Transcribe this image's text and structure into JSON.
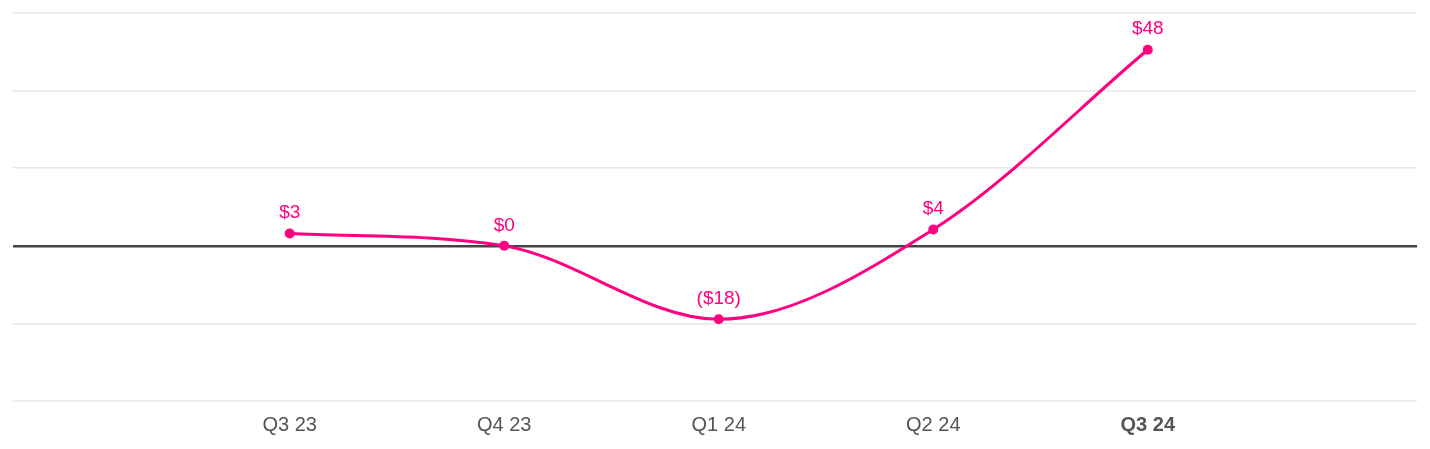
{
  "chart_data": {
    "type": "line",
    "categories": [
      "Q3 23",
      "Q4 23",
      "Q1 24",
      "Q2 24",
      "Q3 24"
    ],
    "values": [
      3,
      0,
      -18,
      4,
      48
    ],
    "color": "#ff0080",
    "value_labels": [
      "$3",
      "$0",
      "($18)",
      "$4",
      "$48"
    ],
    "ylim": [
      -38,
      57
    ],
    "yticks": [
      {
        "value": -38,
        "label": null
      },
      {
        "value": -19,
        "label": null
      },
      {
        "value": 0,
        "label": null
      },
      {
        "value": 19,
        "label": null
      },
      {
        "value": 38,
        "label": null
      },
      {
        "value": 57,
        "label": null
      }
    ],
    "grid": "y",
    "marker": "circle",
    "tick_labels": "x"
  }
}
